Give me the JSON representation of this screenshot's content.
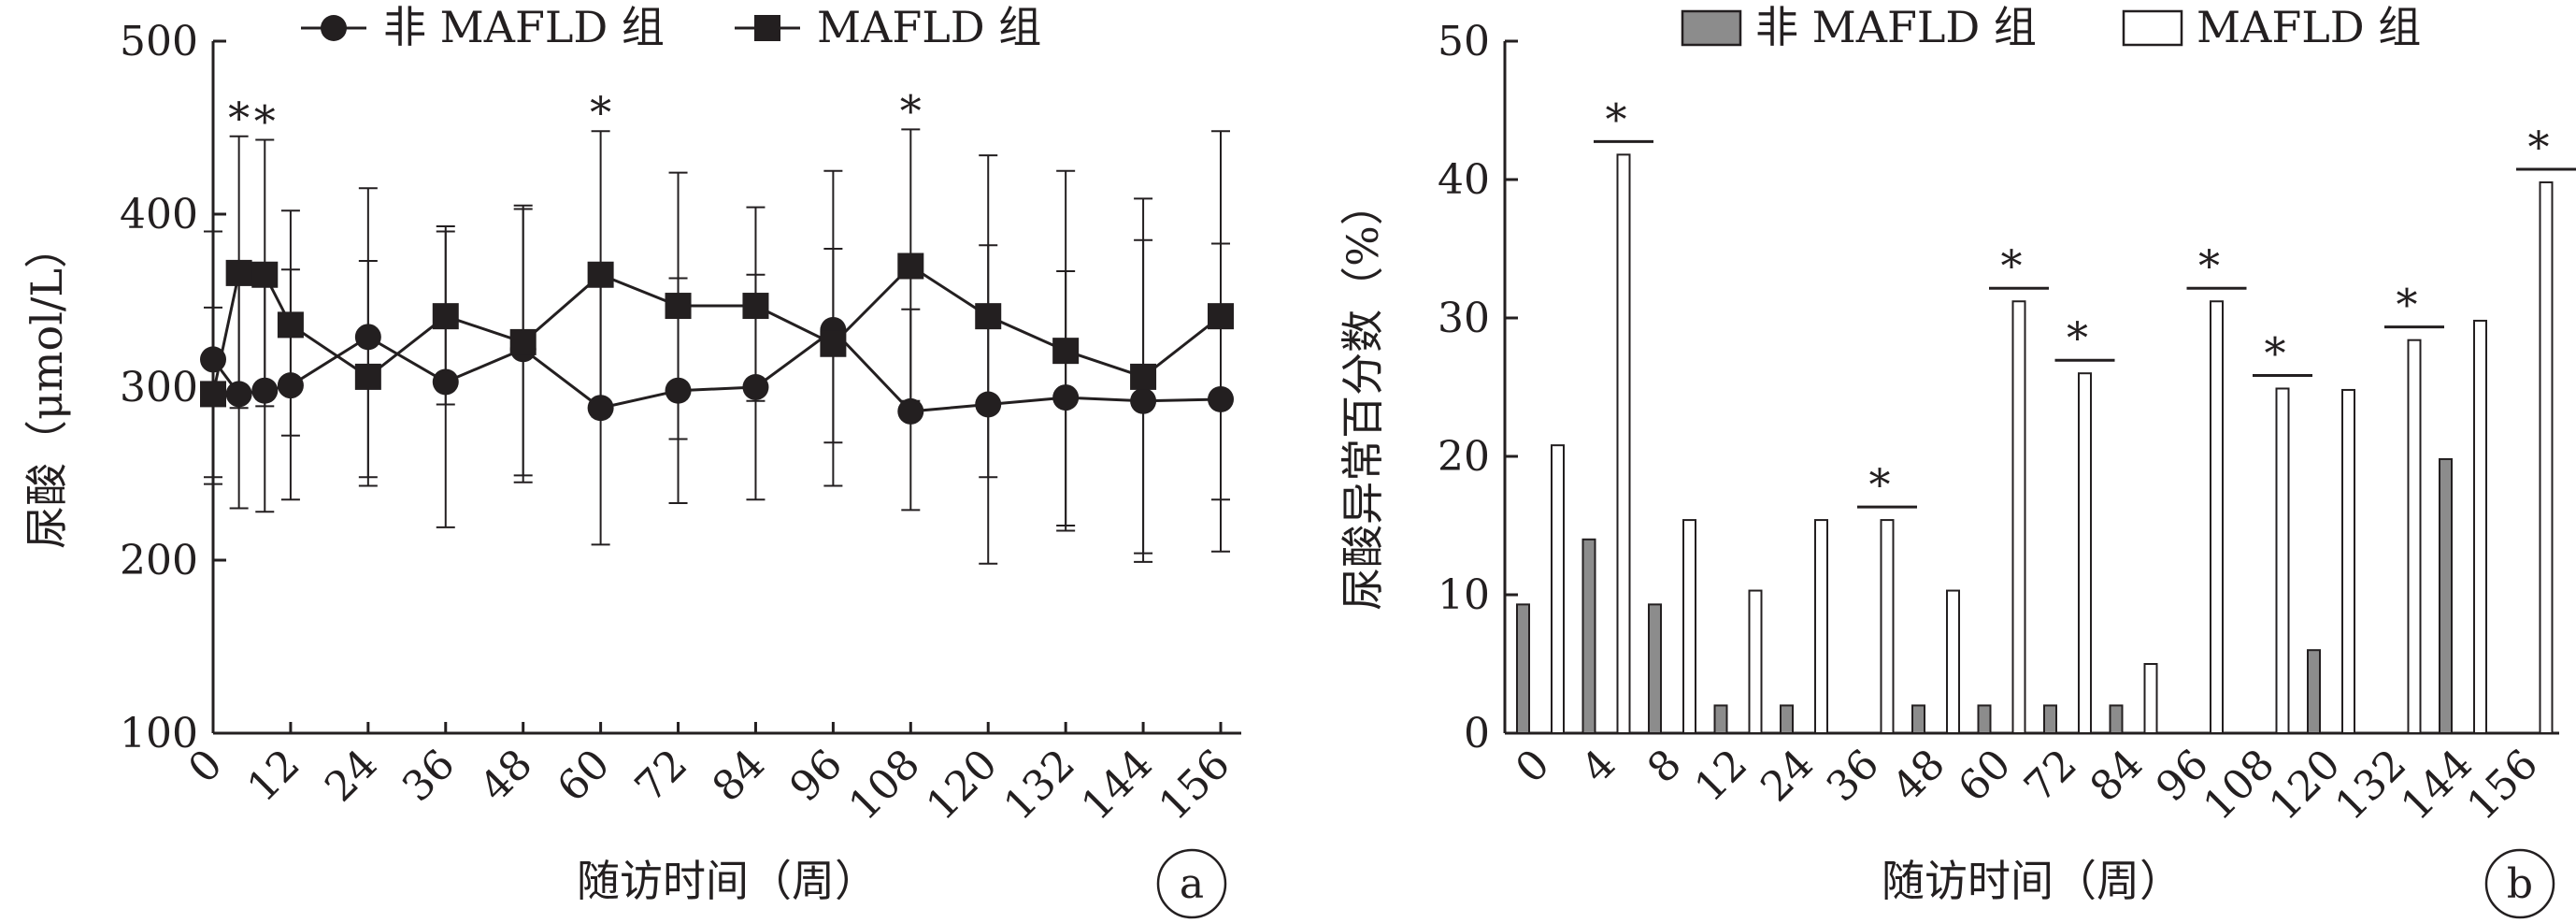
{
  "chart_data": [
    {
      "type": "line",
      "panel_label": "a",
      "xlabel": "随访时间（周）",
      "ylabel": "尿酸（μmol/L）",
      "ylim": [
        100,
        500
      ],
      "yticks": [
        100,
        200,
        300,
        400,
        500
      ],
      "x_tick_labels": [
        "0",
        "12",
        "24",
        "36",
        "48",
        "60",
        "72",
        "84",
        "96",
        "108",
        "120",
        "132",
        "144",
        "156"
      ],
      "x_tick_values": [
        0,
        12,
        24,
        36,
        48,
        60,
        72,
        84,
        96,
        108,
        120,
        132,
        144,
        156
      ],
      "x_range": [
        0,
        156
      ],
      "grid": false,
      "legend_position": "top",
      "series": [
        {
          "name": "非 MAFLD 组",
          "marker": "circle",
          "x": [
            0,
            4,
            8,
            12,
            24,
            36,
            48,
            60,
            72,
            84,
            96,
            108,
            120,
            132,
            144,
            156
          ],
          "y": [
            316,
            296,
            298,
            301,
            329,
            303,
            322,
            288,
            298,
            300,
            333,
            286,
            290,
            294,
            292,
            293
          ],
          "err_low": [
            244,
            230,
            228,
            235,
            243,
            219,
            245,
            209,
            233,
            235,
            243,
            229,
            198,
            220,
            199,
            205
          ],
          "err_high": [
            390,
            370,
            369,
            368,
            415,
            390,
            405,
            365,
            363,
            365,
            425,
            345,
            382,
            367,
            385,
            383
          ]
        },
        {
          "name": "MAFLD 组",
          "marker": "square",
          "x": [
            0,
            4,
            8,
            12,
            24,
            36,
            48,
            60,
            72,
            84,
            96,
            108,
            120,
            132,
            144,
            156
          ],
          "y": [
            296,
            366,
            365,
            336,
            306,
            341,
            326,
            365,
            347,
            347,
            325,
            370,
            341,
            321,
            306,
            341
          ],
          "err_low": [
            248,
            288,
            289,
            272,
            248,
            290,
            249,
            283,
            270,
            292,
            268,
            292,
            248,
            217,
            204,
            235
          ],
          "err_high": [
            346,
            445,
            443,
            402,
            373,
            393,
            403,
            448,
            424,
            404,
            380,
            449,
            434,
            425,
            409,
            448
          ]
        }
      ],
      "annotations": [
        {
          "text": "*",
          "x": 4,
          "y": 445
        },
        {
          "text": "*",
          "x": 8,
          "y": 443
        },
        {
          "text": "*",
          "x": 60,
          "y": 448
        },
        {
          "text": "*",
          "x": 108,
          "y": 449
        }
      ]
    },
    {
      "type": "bar",
      "panel_label": "b",
      "xlabel": "随访时间（周）",
      "ylabel": "尿酸异常百分数（%）",
      "ylim": [
        0,
        50
      ],
      "yticks": [
        0,
        10,
        20,
        30,
        40,
        50
      ],
      "categories": [
        "0",
        "4",
        "8",
        "12",
        "24",
        "36",
        "48",
        "60",
        "72",
        "84",
        "96",
        "108",
        "120",
        "132",
        "144",
        "156"
      ],
      "grid": false,
      "legend_position": "top",
      "series": [
        {
          "name": "非 MAFLD 组",
          "color": "#8c8c8c",
          "values": [
            9.3,
            14.0,
            9.3,
            2.0,
            2.0,
            0,
            2.0,
            2.0,
            2.0,
            2.0,
            0,
            0,
            6.0,
            0,
            19.8,
            0
          ]
        },
        {
          "name": "MAFLD 组",
          "color": "#ffffff",
          "values": [
            20.8,
            41.8,
            15.4,
            10.3,
            15.4,
            15.4,
            10.3,
            31.2,
            26.0,
            5.0,
            31.2,
            24.9,
            24.8,
            28.4,
            29.8,
            39.8
          ]
        }
      ],
      "significant_categories": [
        "4",
        "36",
        "60",
        "72",
        "96",
        "108",
        "132",
        "156"
      ],
      "significance_text": "*"
    }
  ]
}
